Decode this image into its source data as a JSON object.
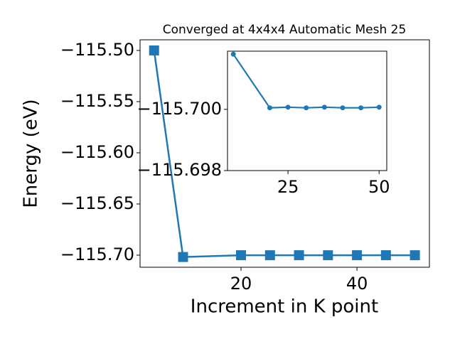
{
  "chart_data": [
    {
      "type": "line",
      "title": "Converged at 4x4x4 Automatic Mesh 25",
      "x_label": "Increment in K point",
      "y_label": "Energy (eV)",
      "x": [
        5,
        10,
        20,
        25,
        30,
        35,
        40,
        45,
        50
      ],
      "series": [
        {
          "color": "#1f77b4",
          "marker": "square",
          "values": [
            -115.5,
            -115.7018,
            -115.70005,
            -115.70007,
            -115.70005,
            -115.70007,
            -115.70005,
            -115.70005,
            -115.70007
          ]
        }
      ],
      "xlim": [
        2.58,
        52.5
      ],
      "ylim": [
        -115.7118,
        -115.4896
      ],
      "xticks": [
        20,
        40
      ],
      "yticks": [
        {
          "value": -115.5,
          "label": "−115.50"
        },
        {
          "value": -115.55,
          "label": "−115.55"
        },
        {
          "value": -115.6,
          "label": "−115.60"
        },
        {
          "value": -115.65,
          "label": "−115.65"
        },
        {
          "value": -115.7,
          "label": "−115.70"
        }
      ]
    },
    {
      "type": "line",
      "x": [
        10,
        20,
        25,
        30,
        35,
        40,
        45,
        50
      ],
      "series": [
        {
          "color": "#1f77b4",
          "marker": "circle",
          "values": [
            -115.7018,
            -115.70005,
            -115.70007,
            -115.70005,
            -115.70007,
            -115.70005,
            -115.70005,
            -115.70007
          ]
        }
      ],
      "xlim": [
        8.4,
        52.1
      ],
      "ylim": [
        -115.698,
        -115.7019
      ],
      "xticks": [
        25,
        50
      ],
      "yticks": [
        {
          "value": -115.7,
          "label": "−115.700"
        },
        {
          "value": -115.698,
          "label": "−115.698"
        }
      ]
    }
  ]
}
